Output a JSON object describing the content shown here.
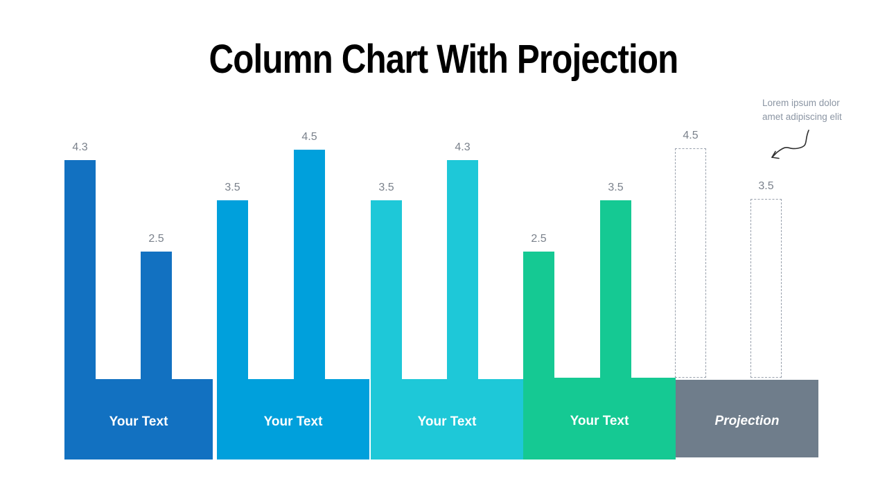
{
  "slide": {
    "title": "Column Chart With Projection",
    "annotation": {
      "line1": "Lorem ipsum dolor",
      "line2": "amet adipiscing elit"
    }
  },
  "chart_data": {
    "type": "bar",
    "title": "Column Chart With Projection",
    "ylim": [
      0,
      4.5
    ],
    "grid": false,
    "axes_visible": false,
    "value_labels_visible": true,
    "value_label_color": "#7A818B",
    "dashed_outline_color": "#98A0AC",
    "groups": [
      {
        "label": "Your Text",
        "style": "solid",
        "color": "#1271C1",
        "values": [
          4.3,
          2.5
        ]
      },
      {
        "label": "Your Text",
        "style": "solid",
        "color": "#00A0DC",
        "values": [
          3.5,
          4.5
        ]
      },
      {
        "label": "Your Text",
        "style": "solid",
        "color": "#1EC8D8",
        "values": [
          3.5,
          4.3
        ]
      },
      {
        "label": "Your Text",
        "style": "solid",
        "color": "#15C993",
        "values": [
          2.5,
          3.5
        ]
      },
      {
        "label": "Projection",
        "style": "dashed",
        "color": "#6F7D8B",
        "values": [
          4.5,
          3.5
        ]
      }
    ]
  }
}
